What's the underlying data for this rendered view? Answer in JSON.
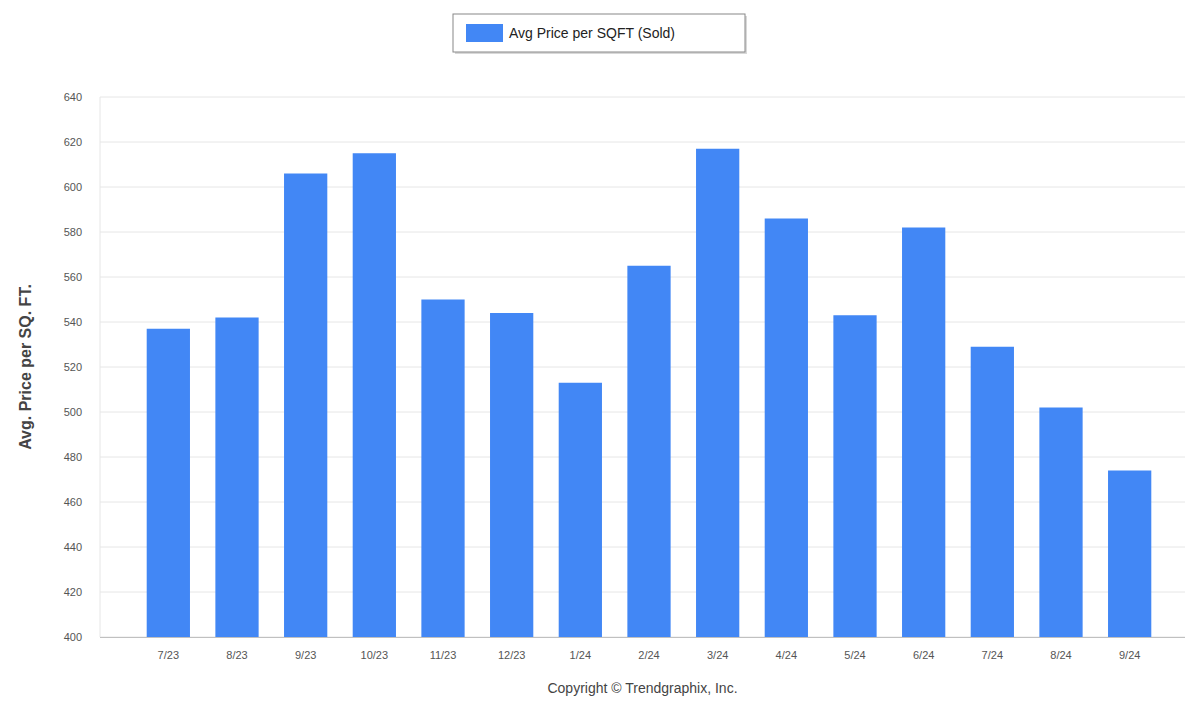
{
  "chart_data": {
    "type": "bar",
    "y_label": "Avg. Price per SQ. FT.",
    "annotation": "Copyright © Trendgraphix, Inc.",
    "categories": [
      "7/23",
      "8/23",
      "9/23",
      "10/23",
      "11/23",
      "12/23",
      "1/24",
      "2/24",
      "3/24",
      "4/24",
      "5/24",
      "6/24",
      "7/24",
      "8/24",
      "9/24"
    ],
    "series": [
      {
        "name": "Avg Price per SQFT (Sold)",
        "color": "#4287f5",
        "values": [
          537,
          542,
          606,
          615,
          550,
          544,
          513,
          565,
          617,
          586,
          543,
          582,
          529,
          502,
          474
        ]
      }
    ],
    "ylim": [
      400,
      640
    ],
    "yticks": [
      400,
      420,
      440,
      460,
      480,
      500,
      520,
      540,
      560,
      580,
      600,
      620,
      640
    ],
    "grid": true,
    "legend": "top"
  }
}
